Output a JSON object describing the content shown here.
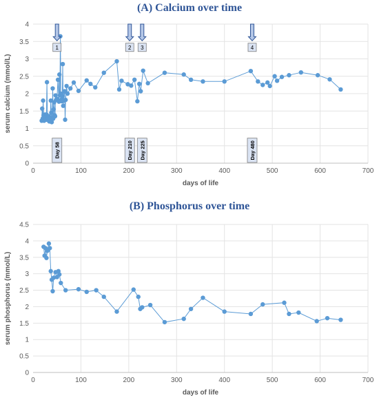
{
  "chart_data": [
    {
      "type": "line",
      "title": "(A) Calcium over time",
      "xlabel": "days of life",
      "ylabel": "serum calcium (mmol/L)",
      "xlim": [
        0,
        700
      ],
      "ylim": [
        0,
        4
      ],
      "xticks": [
        0,
        100,
        200,
        300,
        400,
        500,
        600,
        700
      ],
      "yticks": [
        0,
        0.5,
        1,
        1.5,
        2,
        2.5,
        3,
        3.5,
        4
      ],
      "grid": true,
      "series_color": "#5b9bd5",
      "series": [
        {
          "x": [
            18,
            19,
            20,
            21,
            22,
            23,
            24,
            25,
            26,
            27,
            28,
            29,
            30,
            31,
            32,
            33,
            34,
            35,
            36,
            37,
            38,
            39,
            40,
            41,
            42,
            43,
            44,
            45,
            46,
            47,
            48,
            50,
            52,
            54,
            55,
            56,
            57,
            58,
            59,
            60,
            61,
            62,
            63,
            64,
            65,
            66,
            67,
            68,
            70,
            72,
            78,
            85,
            95,
            112,
            120,
            130,
            148,
            175,
            180,
            185,
            198,
            205,
            212,
            218,
            222,
            225,
            230,
            240,
            275,
            315,
            330,
            355,
            400,
            455,
            470,
            480,
            490,
            495,
            505,
            510,
            520,
            535,
            560,
            595,
            620,
            643
          ],
          "y": [
            1.22,
            1.57,
            1.28,
            1.8,
            1.38,
            1.22,
            1.32,
            1.4,
            1.3,
            1.25,
            1.4,
            2.33,
            1.36,
            1.24,
            1.3,
            1.35,
            1.2,
            1.3,
            1.28,
            1.8,
            1.45,
            1.18,
            1.32,
            2.15,
            1.28,
            1.55,
            1.75,
            1.38,
            1.35,
            1.95,
            1.82,
            1.85,
            2.4,
            1.77,
            2.55,
            1.95,
            3.65,
            2.0,
            1.83,
            1.78,
            1.93,
            2.85,
            1.65,
            1.8,
            2.05,
            2.07,
            1.25,
            1.82,
            2.22,
            2.0,
            2.15,
            2.32,
            2.08,
            2.38,
            2.28,
            2.18,
            2.6,
            2.93,
            2.12,
            2.37,
            2.27,
            2.23,
            2.4,
            1.78,
            2.28,
            2.07,
            2.66,
            2.3,
            2.6,
            2.55,
            2.4,
            2.35,
            2.35,
            2.65,
            2.35,
            2.25,
            2.32,
            2.22,
            2.5,
            2.37,
            2.48,
            2.53,
            2.61,
            2.53,
            2.41,
            2.12
          ]
        }
      ],
      "markers": [
        {
          "x": 50,
          "label": "1",
          "day_label": "Day 58"
        },
        {
          "x": 202,
          "label": "2",
          "day_label": "Day 210"
        },
        {
          "x": 228,
          "label": "3",
          "day_label": "Day 225"
        },
        {
          "x": 458,
          "label": "4",
          "day_label": "Day 480"
        }
      ]
    },
    {
      "type": "line",
      "title": "(B) Phosphorus over time",
      "xlabel": "days of life",
      "ylabel": "serum phosphorus (mmol/L)",
      "xlim": [
        0,
        700
      ],
      "ylim": [
        0,
        4.5
      ],
      "xticks": [
        0,
        100,
        200,
        300,
        400,
        500,
        600,
        700
      ],
      "yticks": [
        0,
        0.5,
        1,
        1.5,
        2,
        2.5,
        3,
        3.5,
        4,
        4.5
      ],
      "grid": true,
      "series_color": "#5b9bd5",
      "series": [
        {
          "x": [
            22,
            24,
            26,
            28,
            30,
            33,
            35,
            37,
            39,
            41,
            43,
            47,
            50,
            53,
            55,
            58,
            68,
            95,
            112,
            132,
            148,
            175,
            210,
            220,
            224,
            228,
            245,
            275,
            315,
            330,
            355,
            400,
            455,
            480,
            525,
            535,
            555,
            593,
            615,
            643
          ],
          "y": [
            3.82,
            3.55,
            3.78,
            3.48,
            3.7,
            3.92,
            3.78,
            3.08,
            2.82,
            2.47,
            2.88,
            3.05,
            2.9,
            3.08,
            2.98,
            2.72,
            2.5,
            2.53,
            2.45,
            2.5,
            2.3,
            1.85,
            2.52,
            2.3,
            1.93,
            1.98,
            2.05,
            1.53,
            1.63,
            1.93,
            2.27,
            1.85,
            1.78,
            2.07,
            2.12,
            1.78,
            1.82,
            1.56,
            1.65,
            1.6
          ]
        }
      ]
    }
  ]
}
